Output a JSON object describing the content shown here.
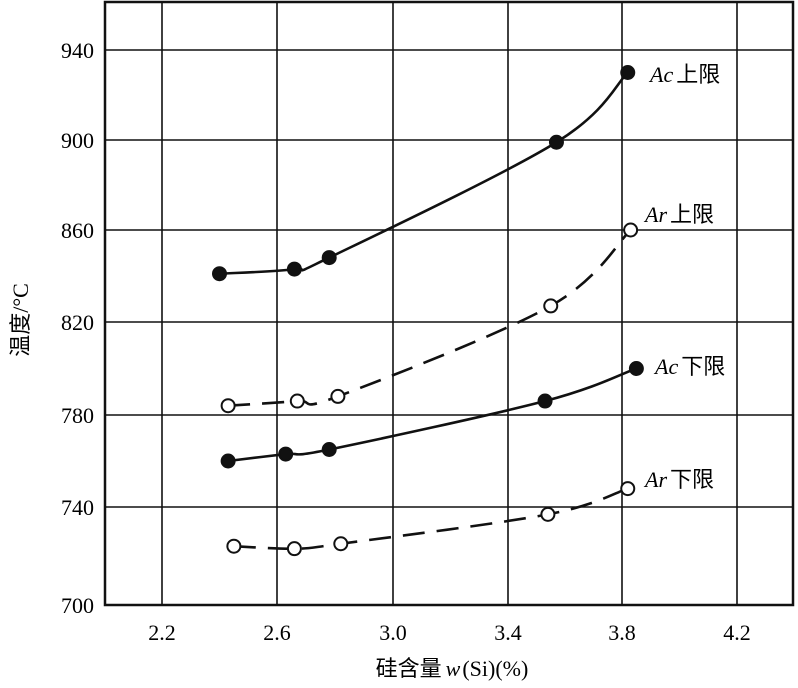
{
  "chart_data": {
    "type": "line",
    "title": "",
    "xlabel": "硅含量 w(Si)(%)",
    "xlabel_parts": {
      "cn": "硅含量",
      "var": "w",
      "rest": "(Si)(%)"
    },
    "ylabel": "温度/°C",
    "xlim": [
      2.0,
      4.4
    ],
    "ylim": [
      700,
      960
    ],
    "xticks": [
      "2.2",
      "2.6",
      "3.0",
      "3.4",
      "3.8",
      "4.2"
    ],
    "yticks": [
      "700",
      "740",
      "780",
      "820",
      "860",
      "900",
      "940"
    ],
    "grid": true,
    "series": [
      {
        "name": "Ac上限",
        "label_italic": "Ac",
        "label_cn": "上限",
        "marker": "filled",
        "line": "solid",
        "x": [
          2.4,
          2.66,
          2.78,
          3.57,
          3.82
        ],
        "y": [
          841,
          843,
          848,
          899,
          930
        ]
      },
      {
        "name": "Ar上限",
        "label_italic": "Ar",
        "label_cn": "上限",
        "marker": "open",
        "line": "dashed",
        "x": [
          2.43,
          2.67,
          2.81,
          3.55,
          3.83
        ],
        "y": [
          784,
          786,
          788,
          827,
          860
        ]
      },
      {
        "name": "Ac下限",
        "label_italic": "Ac",
        "label_cn": "下限",
        "marker": "filled",
        "line": "solid",
        "x": [
          2.43,
          2.63,
          2.78,
          3.53,
          3.85
        ],
        "y": [
          760,
          763,
          765,
          786,
          800
        ]
      },
      {
        "name": "Ar下限",
        "label_italic": "Ar",
        "label_cn": "下限",
        "marker": "open",
        "line": "dashed",
        "x": [
          2.45,
          2.66,
          2.82,
          3.54,
          3.82
        ],
        "y": [
          724,
          723,
          725,
          737,
          748
        ]
      }
    ]
  }
}
